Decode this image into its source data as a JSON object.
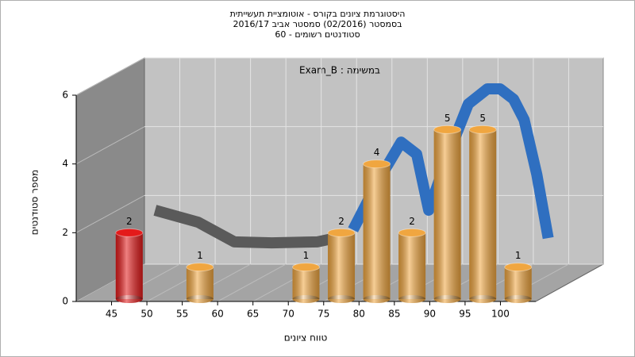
{
  "chart_data": {
    "type": "histogram",
    "title_lines": [
      "היסטוגרמת ציונים בקורס - אוטומציית תעשייתית",
      "בסמסטר (02/2016)  סמסטר אביב 2016/17",
      "סטודנטים רשומים - 60"
    ],
    "annotation": "Exam_B : במשימה",
    "xlabel": "טווח ציונים",
    "ylabel": "מספר סטודנטים",
    "bins": [
      45,
      50,
      55,
      60,
      65,
      70,
      75,
      80,
      85,
      90,
      95,
      100,
      105
    ],
    "counts": [
      2,
      0,
      1,
      0,
      0,
      1,
      2,
      4,
      2,
      5,
      5,
      1
    ],
    "bar_colors": [
      "#e41a1a",
      "#f0a640",
      "#f0a640",
      "#f0a640",
      "#f0a640",
      "#f0a640",
      "#f0a640",
      "#f0a640",
      "#f0a640",
      "#f0a640",
      "#f0a640",
      "#f0a640"
    ],
    "xlim": [
      40,
      105
    ],
    "xticks": [
      45,
      50,
      55,
      60,
      65,
      70,
      75,
      80,
      85,
      90,
      95,
      100
    ],
    "ylim": [
      0,
      6
    ],
    "yticks": [
      0,
      2,
      4,
      6
    ],
    "curve": [
      {
        "color": "#5a5a5a",
        "x": [
          41.5,
          47.6,
          52.7,
          58,
          64.5,
          67.9
        ],
        "y": [
          1.57,
          1.22,
          0.65,
          0.62,
          0.65,
          0.8
        ]
      },
      {
        "color": "#2f6fc0",
        "x": [
          69.5,
          73,
          76.3,
          78.5,
          80.2,
          83,
          85.8,
          88.5,
          90.3,
          92.2,
          93.7,
          95.5,
          97.1
        ],
        "y": [
          1.0,
          2.4,
          3.55,
          3.2,
          1.57,
          3.2,
          4.66,
          5.1,
          5.1,
          4.8,
          4.2,
          2.6,
          0.76
        ]
      }
    ]
  }
}
